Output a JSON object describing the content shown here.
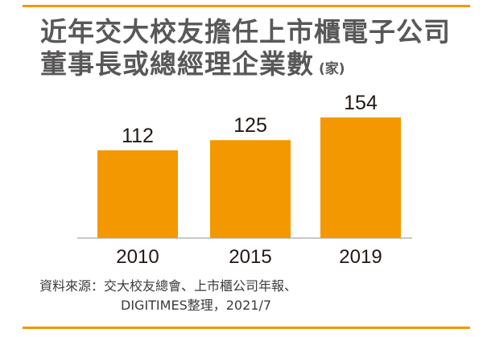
{
  "header": {
    "title_line1": "近年交大校友擔任上市櫃電子公司",
    "title_line2": "董事長或總經理企業數",
    "unit": "(家)"
  },
  "chart_data": {
    "type": "bar",
    "title": "近年交大校友擔任上市櫃電子公司董事長或總經理企業數",
    "ylabel": "(家)",
    "xlabel": "",
    "categories": [
      "2010",
      "2015",
      "2019"
    ],
    "values": [
      112,
      125,
      154
    ],
    "ylim": [
      0,
      154
    ],
    "grid": false,
    "bar_color": "#f39800"
  },
  "footer": {
    "source_line1": "資料來源：交大校友總會、上市櫃公司年報、",
    "source_line2": "DIGITIMES整理，2021/7"
  },
  "colors": {
    "accent": "#f39800",
    "title": "#595757",
    "text": "#231815"
  }
}
